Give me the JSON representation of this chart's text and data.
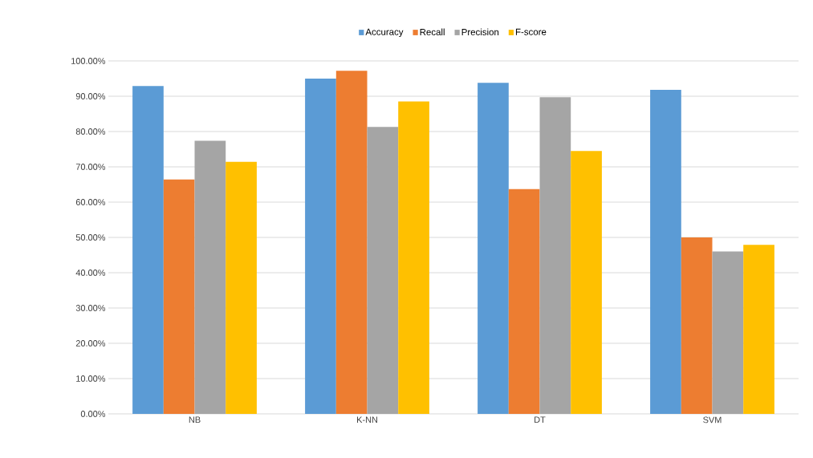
{
  "chart_data": {
    "type": "bar",
    "categories": [
      "NB",
      "K-NN",
      "DT",
      "SVM"
    ],
    "series": [
      {
        "name": "Accuracy",
        "color": "#5b9bd5",
        "values": [
          92.9,
          95.0,
          93.8,
          91.8
        ]
      },
      {
        "name": "Recall",
        "color": "#ed7d31",
        "values": [
          66.4,
          97.2,
          63.7,
          50.0
        ]
      },
      {
        "name": "Precision",
        "color": "#a5a5a5",
        "values": [
          77.4,
          81.3,
          89.7,
          46.0
        ]
      },
      {
        "name": "F-score",
        "color": "#ffc000",
        "values": [
          71.4,
          88.5,
          74.5,
          47.9
        ]
      }
    ],
    "ylim": [
      0,
      100
    ],
    "yticks": [
      {
        "value": 0,
        "label": "0.00%"
      },
      {
        "value": 10,
        "label": "10.00%"
      },
      {
        "value": 20,
        "label": "20.00%"
      },
      {
        "value": 30,
        "label": "30.00%"
      },
      {
        "value": 40,
        "label": "40.00%"
      },
      {
        "value": 50,
        "label": "50.00%"
      },
      {
        "value": 60,
        "label": "60.00%"
      },
      {
        "value": 70,
        "label": "70.00%"
      },
      {
        "value": 80,
        "label": "80.00%"
      },
      {
        "value": 90,
        "label": "90.00%"
      },
      {
        "value": 100,
        "label": "100.00%"
      }
    ],
    "grid": "y",
    "legend": "top"
  }
}
